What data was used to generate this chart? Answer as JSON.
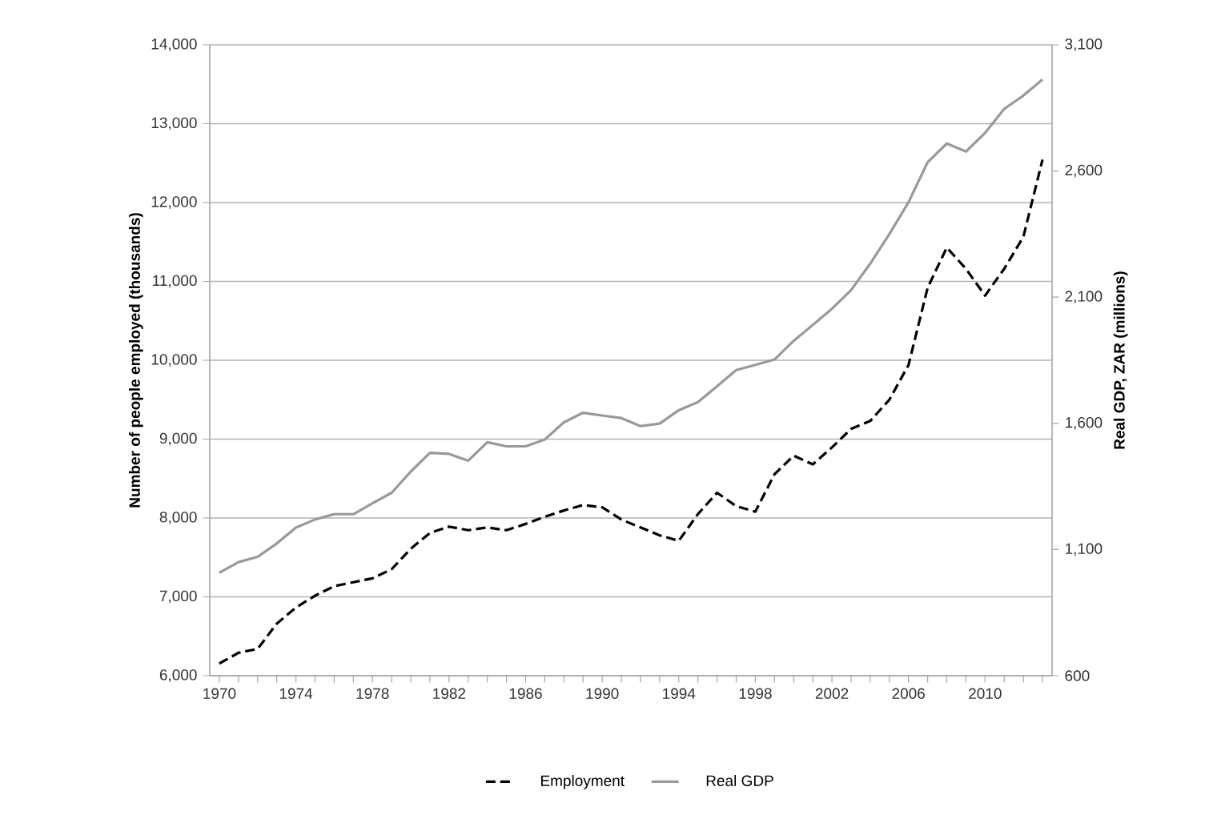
{
  "chart_data": {
    "type": "line",
    "ylabel": "Number of people employed (thousands)",
    "y2label": "Real GDP, ZAR (millions)",
    "categories": [
      "1970",
      null,
      null,
      null,
      "1974",
      null,
      null,
      null,
      "1978",
      null,
      null,
      null,
      "1982",
      null,
      null,
      null,
      "1986",
      null,
      null,
      null,
      "1990",
      null,
      null,
      null,
      "1994",
      null,
      null,
      null,
      "1998",
      null,
      null,
      null,
      "2002",
      null,
      null,
      null,
      "2006",
      null,
      null,
      null,
      "2010",
      null,
      null,
      null
    ],
    "series": [
      {
        "name": "Employment",
        "color": "#000000",
        "line_style": "dashed",
        "values": [
          6155,
          6290,
          6340,
          6660,
          6865,
          7015,
          7135,
          7185,
          7235,
          7350,
          7610,
          7810,
          7890,
          7845,
          7880,
          7845,
          7925,
          8015,
          8095,
          8165,
          8135,
          7980,
          7880,
          7780,
          7710,
          8050,
          8320,
          8150,
          8080,
          8555,
          8790,
          8680,
          8895,
          9130,
          9230,
          9500,
          9940,
          10920,
          11430,
          11160,
          10820,
          11160,
          11565,
          12545
        ]
      },
      {
        "name": "Real GDP",
        "color": "#999999",
        "line_style": "solid",
        "axis": "y2",
        "values": [
          1008,
          1050,
          1071,
          1124,
          1187,
          1219,
          1240,
          1240,
          1283,
          1325,
          1409,
          1483,
          1479,
          1452,
          1525,
          1509,
          1509,
          1536,
          1604,
          1642,
          1631,
          1621,
          1589,
          1599,
          1652,
          1684,
          1747,
          1811,
          1832,
          1853,
          1927,
          1990,
          2054,
          2128,
          2233,
          2350,
          2476,
          2635,
          2709,
          2677,
          2751,
          2846,
          2899,
          2963
        ]
      }
    ],
    "ylim": [
      6000,
      14000
    ],
    "yticks": [
      {
        "value": 6000,
        "label": "6,000"
      },
      {
        "value": 7000,
        "label": "7,000"
      },
      {
        "value": 8000,
        "label": "8,000"
      },
      {
        "value": 9000,
        "label": "9,000"
      },
      {
        "value": 10000,
        "label": "10,000"
      },
      {
        "value": 11000,
        "label": "11,000"
      },
      {
        "value": 12000,
        "label": "12,000"
      },
      {
        "value": 13000,
        "label": "13,000"
      },
      {
        "value": 14000,
        "label": "14,000"
      }
    ],
    "y2lim": [
      600,
      3100
    ],
    "y2ticks": [
      600,
      {
        "value": 1100,
        "label": "1,100"
      },
      {
        "value": 1600,
        "label": "1,600"
      },
      {
        "value": 2100,
        "label": "2,100"
      },
      {
        "value": 2600,
        "label": "2,600"
      },
      {
        "value": 3100,
        "label": "3,100"
      }
    ],
    "grid": "y",
    "legend": "bottom"
  }
}
